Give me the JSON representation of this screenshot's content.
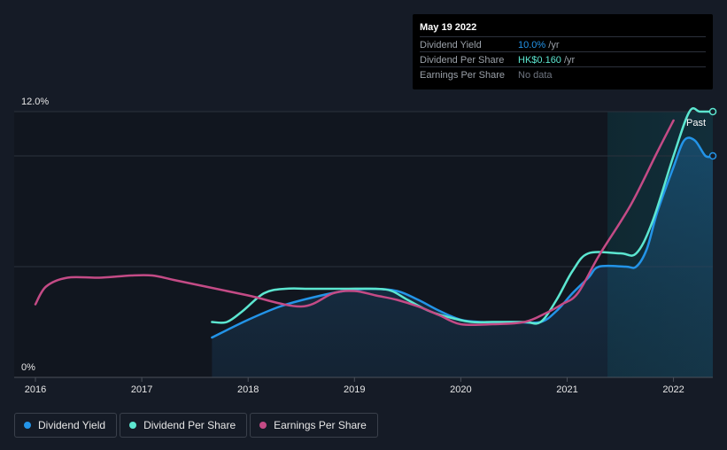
{
  "chart_data": {
    "type": "line",
    "title": "",
    "xlabel": "",
    "ylabel": "",
    "x_range": [
      2015.8,
      2022.37
    ],
    "ylim": [
      0,
      12
    ],
    "y_ticks": [
      {
        "value": 12,
        "label": "12.0%"
      },
      {
        "value": 0,
        "label": "0%"
      }
    ],
    "x_ticks": [
      "2016",
      "2017",
      "2018",
      "2019",
      "2020",
      "2021",
      "2022"
    ],
    "x_tick_values": [
      2016,
      2017,
      2018,
      2019,
      2020,
      2021,
      2022
    ],
    "gridlines_y": [
      12,
      10,
      5
    ],
    "past_region_start": 2021.38,
    "past_label": "Past",
    "series": [
      {
        "name": "Dividend Yield",
        "color": "#2394e8",
        "fill": true,
        "x": [
          2017.66,
          2018.0,
          2018.3,
          2018.6,
          2018.9,
          2019.15,
          2019.4,
          2019.6,
          2019.8,
          2020.0,
          2020.2,
          2020.5,
          2020.75,
          2020.9,
          2021.05,
          2021.2,
          2021.3,
          2021.55,
          2021.65,
          2021.75,
          2021.85,
          2022.0,
          2022.1,
          2022.2,
          2022.3,
          2022.37
        ],
        "values": [
          1.8,
          2.6,
          3.2,
          3.6,
          3.9,
          4.0,
          3.9,
          3.5,
          3.0,
          2.6,
          2.5,
          2.5,
          2.5,
          3.0,
          3.8,
          4.5,
          5.0,
          5.0,
          5.0,
          5.8,
          7.5,
          9.5,
          10.7,
          10.7,
          10.0,
          10.0
        ]
      },
      {
        "name": "Dividend Per Share",
        "color": "#5ce6d0",
        "fill": false,
        "x": [
          2017.66,
          2017.8,
          2017.95,
          2018.15,
          2018.35,
          2018.6,
          2018.9,
          2019.2,
          2019.35,
          2019.5,
          2019.7,
          2019.9,
          2020.1,
          2020.3,
          2020.6,
          2020.75,
          2020.9,
          2021.05,
          2021.2,
          2021.5,
          2021.65,
          2021.8,
          2022.0,
          2022.15,
          2022.25,
          2022.37
        ],
        "values": [
          2.5,
          2.5,
          3.0,
          3.8,
          4.0,
          4.0,
          4.0,
          4.0,
          3.9,
          3.5,
          3.0,
          2.7,
          2.5,
          2.5,
          2.5,
          2.5,
          3.5,
          4.8,
          5.6,
          5.6,
          5.6,
          7.0,
          10.0,
          12.0,
          12.0,
          12.0
        ]
      },
      {
        "name": "Earnings Per Share",
        "color": "#c44b86",
        "fill": false,
        "x": [
          2016.0,
          2016.1,
          2016.3,
          2016.6,
          2016.9,
          2017.1,
          2017.3,
          2017.6,
          2018.0,
          2018.5,
          2018.8,
          2019.0,
          2019.2,
          2019.4,
          2019.6,
          2019.8,
          2020.0,
          2020.3,
          2020.6,
          2020.8,
          2020.95,
          2021.1,
          2021.3,
          2021.6,
          2021.85,
          2022.0
        ],
        "values": [
          3.3,
          4.1,
          4.5,
          4.5,
          4.6,
          4.6,
          4.4,
          4.1,
          3.7,
          3.2,
          3.8,
          3.9,
          3.7,
          3.5,
          3.2,
          2.8,
          2.4,
          2.4,
          2.5,
          2.9,
          3.3,
          3.8,
          5.5,
          7.8,
          10.2,
          11.6
        ]
      }
    ]
  },
  "tooltip": {
    "date": "May 19 2022",
    "rows": [
      {
        "label": "Dividend Yield",
        "value": "10.0%",
        "unit": " /yr",
        "color": "#2394e8"
      },
      {
        "label": "Dividend Per Share",
        "value": "HK$0.160",
        "unit": " /yr",
        "color": "#5ce6d0"
      },
      {
        "label": "Earnings Per Share",
        "value": "No data",
        "unit": "",
        "color": "#6f7580"
      }
    ]
  },
  "legend": [
    {
      "label": "Dividend Yield",
      "color": "#2394e8"
    },
    {
      "label": "Dividend Per Share",
      "color": "#5ce6d0"
    },
    {
      "label": "Earnings Per Share",
      "color": "#c44b86"
    }
  ]
}
